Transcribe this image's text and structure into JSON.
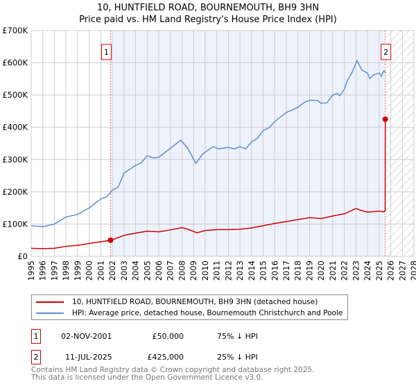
{
  "chart_data": {
    "type": "line",
    "title": "10, HUNTFIELD ROAD, BOURNEMOUTH, BH9 3HN",
    "subtitle": "Price paid vs. HM Land Registry's House Price Index (HPI)",
    "xlim": [
      1995,
      2028
    ],
    "ylim": [
      0,
      700000
    ],
    "x_ticks": [
      "1995",
      "1996",
      "1997",
      "1998",
      "1999",
      "2000",
      "2001",
      "2002",
      "2003",
      "2004",
      "2005",
      "2006",
      "2007",
      "2008",
      "2009",
      "2010",
      "2011",
      "2012",
      "2013",
      "2014",
      "2015",
      "2016",
      "2017",
      "2018",
      "2019",
      "2020",
      "2021",
      "2022",
      "2023",
      "2024",
      "2025",
      "2026",
      "2027",
      "2028"
    ],
    "y_ticks": [
      {
        "v": 0,
        "label": "£0"
      },
      {
        "v": 100000,
        "label": "£100K"
      },
      {
        "v": 200000,
        "label": "£200K"
      },
      {
        "v": 300000,
        "label": "£300K"
      },
      {
        "v": 400000,
        "label": "£400K"
      },
      {
        "v": 500000,
        "label": "£500K"
      },
      {
        "v": 600000,
        "label": "£600K"
      },
      {
        "v": 700000,
        "label": "£700K"
      }
    ],
    "grid": true,
    "series": [
      {
        "name": "10, HUNTFIELD ROAD, BOURNEMOUTH, BH9 3HN (detached house)",
        "color": "#cc0000",
        "points": [
          [
            1995,
            25000
          ],
          [
            1996,
            24000
          ],
          [
            1997,
            25000
          ],
          [
            1998,
            31000
          ],
          [
            1999,
            34000
          ],
          [
            2000,
            40000
          ],
          [
            2001,
            45000
          ],
          [
            2001.84,
            50000
          ],
          [
            2002.5,
            58000
          ],
          [
            2003,
            65000
          ],
          [
            2004,
            72000
          ],
          [
            2005,
            78000
          ],
          [
            2006,
            76000
          ],
          [
            2007,
            82000
          ],
          [
            2008,
            89000
          ],
          [
            2008.5,
            84000
          ],
          [
            2009.3,
            73000
          ],
          [
            2010,
            80000
          ],
          [
            2011,
            83000
          ],
          [
            2012,
            83000
          ],
          [
            2013,
            84000
          ],
          [
            2014,
            88000
          ],
          [
            2015,
            95000
          ],
          [
            2016,
            102000
          ],
          [
            2017,
            108000
          ],
          [
            2018,
            114000
          ],
          [
            2019,
            120000
          ],
          [
            2020,
            117000
          ],
          [
            2021,
            125000
          ],
          [
            2022,
            132000
          ],
          [
            2023,
            148000
          ],
          [
            2023.5,
            142000
          ],
          [
            2024,
            137000
          ],
          [
            2025,
            140000
          ],
          [
            2025.4,
            138000
          ],
          [
            2025.52,
            142000
          ],
          [
            2025.53,
            425000
          ]
        ]
      },
      {
        "name": "HPI: Average price, detached house, Bournemouth Christchurch and Poole",
        "color": "#5b8fd0",
        "points": [
          [
            1995,
            95000
          ],
          [
            1996,
            92000
          ],
          [
            1997,
            100000
          ],
          [
            1998,
            122000
          ],
          [
            1999,
            130000
          ],
          [
            2000,
            150000
          ],
          [
            2001,
            178000
          ],
          [
            2001.5,
            185000
          ],
          [
            2002,
            205000
          ],
          [
            2002.5,
            215000
          ],
          [
            2003,
            258000
          ],
          [
            2004,
            282000
          ],
          [
            2004.5,
            290000
          ],
          [
            2005,
            312000
          ],
          [
            2005.5,
            305000
          ],
          [
            2006,
            307000
          ],
          [
            2007,
            335000
          ],
          [
            2007.9,
            360000
          ],
          [
            2008.5,
            335000
          ],
          [
            2009.2,
            288000
          ],
          [
            2009.8,
            318000
          ],
          [
            2010.7,
            340000
          ],
          [
            2011.2,
            333000
          ],
          [
            2012,
            338000
          ],
          [
            2012.5,
            333000
          ],
          [
            2013,
            340000
          ],
          [
            2013.5,
            333000
          ],
          [
            2014,
            355000
          ],
          [
            2014.5,
            365000
          ],
          [
            2015,
            390000
          ],
          [
            2015.5,
            398000
          ],
          [
            2016,
            418000
          ],
          [
            2016.6,
            435000
          ],
          [
            2017,
            446000
          ],
          [
            2017.6,
            455000
          ],
          [
            2018,
            462000
          ],
          [
            2018.5,
            476000
          ],
          [
            2019,
            484000
          ],
          [
            2019.7,
            483000
          ],
          [
            2020,
            474000
          ],
          [
            2020.5,
            476000
          ],
          [
            2021,
            500000
          ],
          [
            2021.4,
            505000
          ],
          [
            2021.6,
            498000
          ],
          [
            2022,
            518000
          ],
          [
            2022.3,
            548000
          ],
          [
            2022.6,
            565000
          ],
          [
            2022.9,
            590000
          ],
          [
            2023.1,
            607000
          ],
          [
            2023.5,
            578000
          ],
          [
            2024,
            568000
          ],
          [
            2024.2,
            551000
          ],
          [
            2024.5,
            562000
          ],
          [
            2025,
            568000
          ],
          [
            2025.2,
            558000
          ],
          [
            2025.4,
            575000
          ],
          [
            2025.6,
            568000
          ]
        ]
      }
    ],
    "annotations": [
      {
        "label": "1",
        "x": 2001.84,
        "y": 50000
      },
      {
        "label": "2",
        "x": 2025.53,
        "y": 425000
      }
    ],
    "legend_placement": "below"
  },
  "colors": {
    "red": "#cc0000",
    "blue": "#5b8fd0",
    "shade": "#eef2fd"
  },
  "transactions": [
    {
      "num": "1",
      "date": "02-NOV-2001",
      "price": "£50,000",
      "hpi": "75% ↓ HPI"
    },
    {
      "num": "2",
      "date": "11-JUL-2025",
      "price": "£425,000",
      "hpi": "25% ↓ HPI"
    }
  ],
  "footer": [
    "Contains HM Land Registry data © Crown copyright and database right 2025.",
    "This data is licensed under the Open Government Licence v3.0."
  ]
}
